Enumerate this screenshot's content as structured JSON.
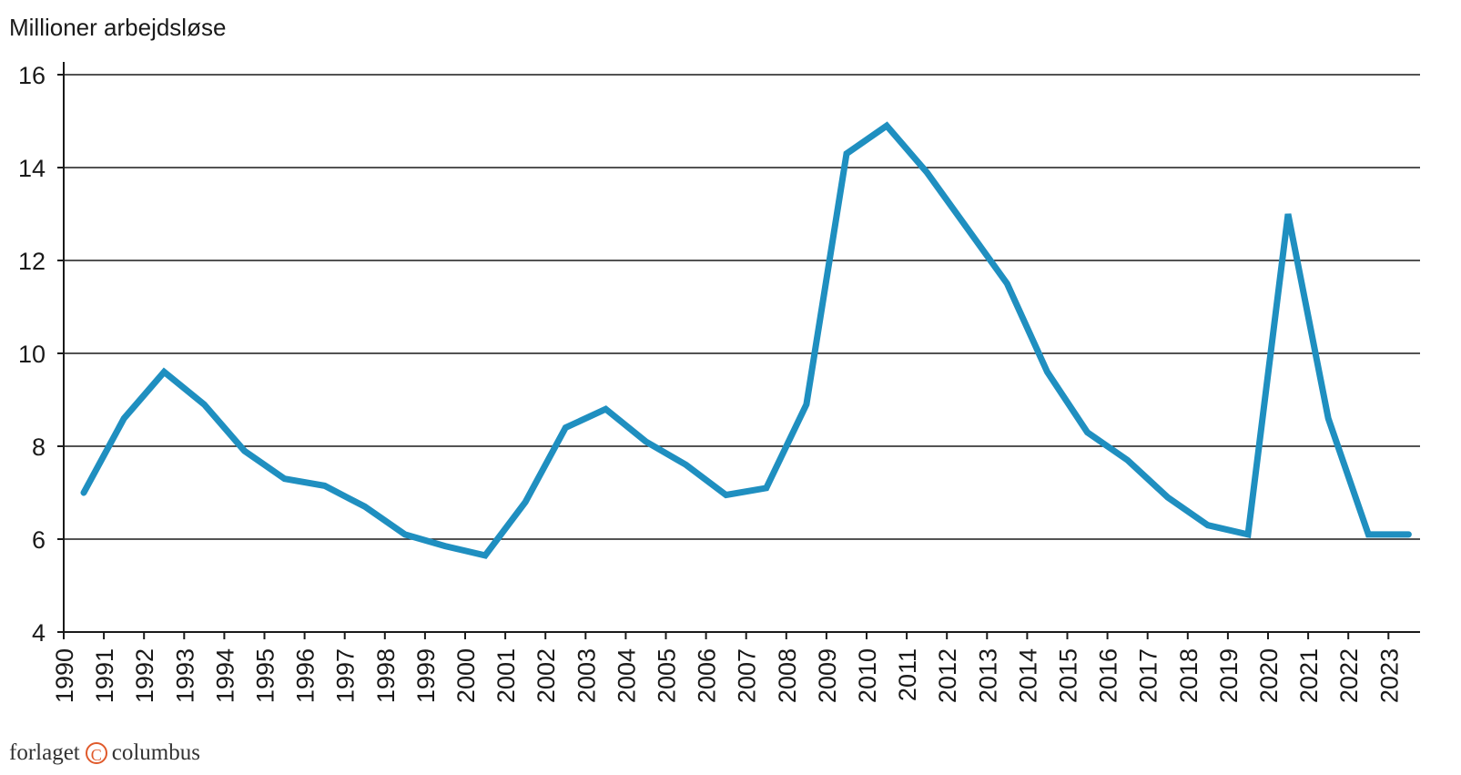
{
  "chart_data": {
    "type": "line",
    "ylabel": "Millioner arbejdsløse",
    "xlabel": "",
    "title": "",
    "ylim": [
      4,
      16
    ],
    "yticks": [
      4,
      6,
      8,
      10,
      12,
      14,
      16
    ],
    "grid": "horizontal",
    "categories": [
      "1990",
      "1991",
      "1992",
      "1993",
      "1994",
      "1995",
      "1996",
      "1997",
      "1998",
      "1999",
      "2000",
      "2001",
      "2002",
      "2003",
      "2004",
      "2005",
      "2006",
      "2007",
      "2008",
      "2009",
      "2010",
      "2011",
      "2012",
      "2013",
      "2014",
      "2015",
      "2016",
      "2017",
      "2018",
      "2019",
      "2020",
      "2021",
      "2022",
      "2023"
    ],
    "series": [
      {
        "color": "#1f8fc0",
        "x": [
          1990.5,
          1991.5,
          1992.5,
          1993.5,
          1994.5,
          1995.5,
          1996.5,
          1997.5,
          1998.5,
          1999.5,
          2000.5,
          2001.5,
          2002.5,
          2003.5,
          2004.5,
          2005.5,
          2006.5,
          2007.5,
          2008.5,
          2009.5,
          2010.5,
          2011.5,
          2012.5,
          2013.5,
          2014.5,
          2015.5,
          2016.5,
          2017.5,
          2018.5,
          2019.5,
          2020.5,
          2021.5,
          2022.5,
          2023.5
        ],
        "values": [
          7.0,
          8.6,
          9.6,
          8.9,
          7.9,
          7.3,
          7.15,
          6.7,
          6.1,
          5.85,
          5.65,
          6.8,
          8.4,
          8.8,
          8.1,
          7.6,
          6.95,
          7.1,
          8.9,
          14.3,
          14.9,
          13.9,
          12.7,
          11.5,
          9.6,
          8.3,
          7.7,
          6.9,
          6.3,
          6.1,
          13.0,
          8.6,
          6.1,
          6.1
        ]
      }
    ]
  },
  "brand": {
    "left": "forlaget",
    "mark": "C",
    "right": "columbus"
  }
}
